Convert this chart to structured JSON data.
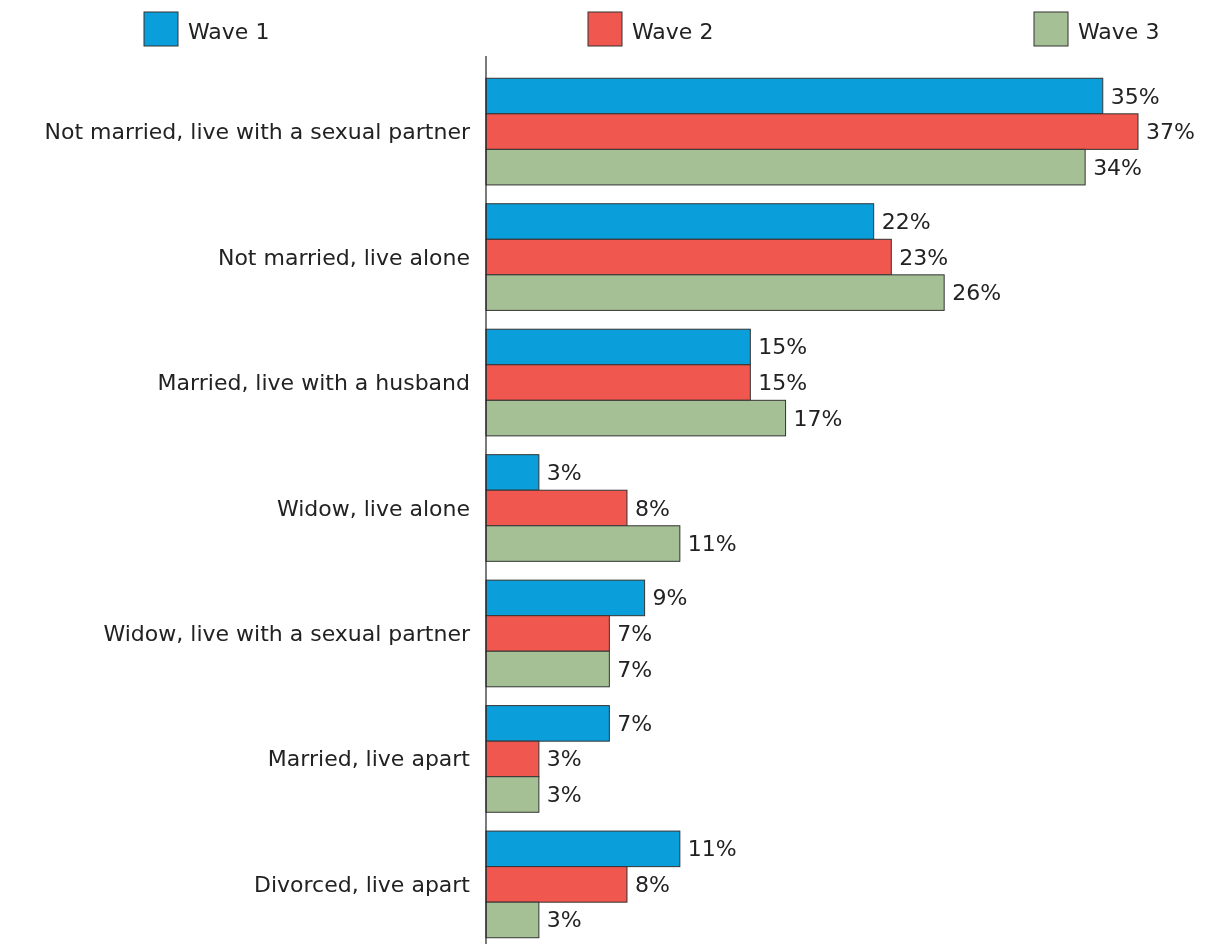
{
  "chart_data": {
    "type": "bar",
    "orientation": "horizontal",
    "legend": "top",
    "categories": [
      "Not married, live with a sexual partner",
      "Not married, live alone",
      "Married, live with a husband",
      "Widow, live alone",
      "Widow, live with a sexual partner",
      "Married, live apart",
      "Divorced, live apart"
    ],
    "series": [
      {
        "name": "Wave 1",
        "color": "#0a9fdb",
        "values": [
          35,
          22,
          15,
          3,
          9,
          7,
          11
        ],
        "value_labels": [
          "35%",
          "22%",
          "15%",
          "3%",
          "9%",
          "7%",
          "11%"
        ]
      },
      {
        "name": "Wave 2",
        "color": "#f0574f",
        "values": [
          37,
          23,
          15,
          8,
          7,
          3,
          8
        ],
        "value_labels": [
          "37%",
          "23%",
          "15%",
          "8%",
          "7%",
          "3%",
          "8%"
        ]
      },
      {
        "name": "Wave 3",
        "color": "#a5c095",
        "values": [
          34,
          26,
          17,
          11,
          7,
          3,
          3
        ],
        "value_labels": [
          "34%",
          "26%",
          "17%",
          "11%",
          "7%",
          "3%",
          "3%"
        ]
      }
    ]
  }
}
